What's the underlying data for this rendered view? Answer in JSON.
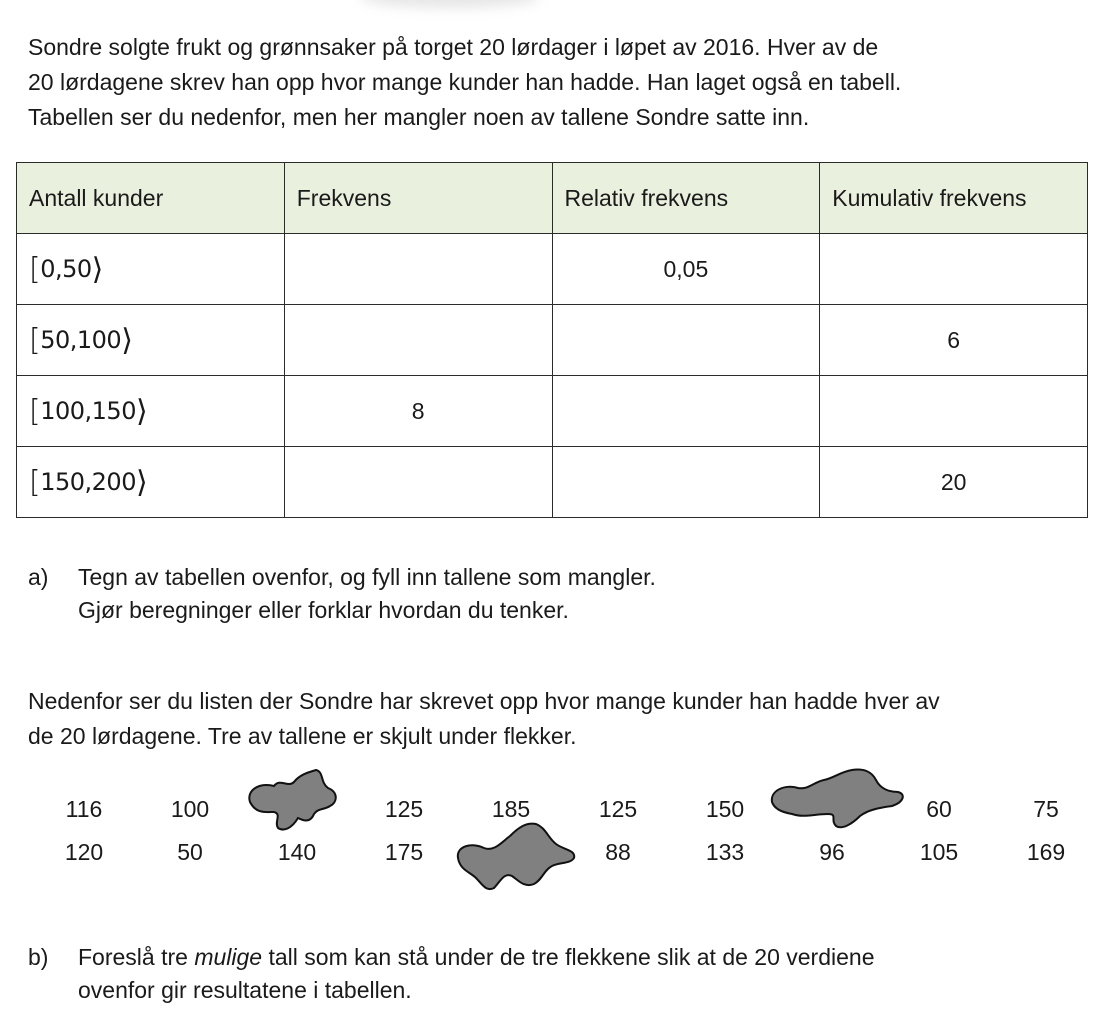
{
  "intro": {
    "lines": [
      "Sondre solgte frukt og grønnsaker på torget 20 lørdager i løpet av 2016. Hver av de",
      "20 lørdagene skrev han opp hvor mange kunder han hadde. Han laget også en tabell.",
      "Tabellen ser du nedenfor, men her mangler noen av tallene Sondre satte inn."
    ]
  },
  "table": {
    "headers": [
      "Antall kunder",
      "Frekvens",
      "Relativ frekvens",
      "Kumulativ frekvens"
    ],
    "header_bg": "#e9f0de",
    "rows": [
      {
        "interval": "0,50",
        "frekvens": "",
        "relativ": "0,05",
        "kumulativ": ""
      },
      {
        "interval": "50,100",
        "frekvens": "",
        "relativ": "",
        "kumulativ": "6"
      },
      {
        "interval": "100,150",
        "frekvens": "8",
        "relativ": "",
        "kumulativ": ""
      },
      {
        "interval": "150,200",
        "frekvens": "",
        "relativ": "",
        "kumulativ": "20"
      }
    ]
  },
  "task_a": {
    "label": "a)",
    "lines": [
      "Tegn av tabellen ovenfor, og fyll inn tallene som mangler.",
      "Gjør beregninger eller forklar hvordan du tenker."
    ]
  },
  "para2": {
    "lines": [
      "Nedenfor ser du listen der Sondre har skrevet opp hvor mange kunder han hadde hver av",
      "de 20 lørdagene. Tre av tallene er skjult under flekker."
    ]
  },
  "numbers": {
    "row1": [
      "116",
      "100",
      "",
      "125",
      "185",
      "125",
      "150",
      "",
      "60",
      "75"
    ],
    "row2": [
      "120",
      "50",
      "140",
      "175",
      "",
      "88",
      "133",
      "96",
      "105",
      "169"
    ]
  },
  "blot_color": "#808080",
  "task_b": {
    "label": "b)",
    "before": "Foreslå tre ",
    "emph": "mulige",
    "after": " tall som kan stå under de tre flekkene slik at de 20 verdiene",
    "line2": "ovenfor gir resultatene i tabellen."
  }
}
